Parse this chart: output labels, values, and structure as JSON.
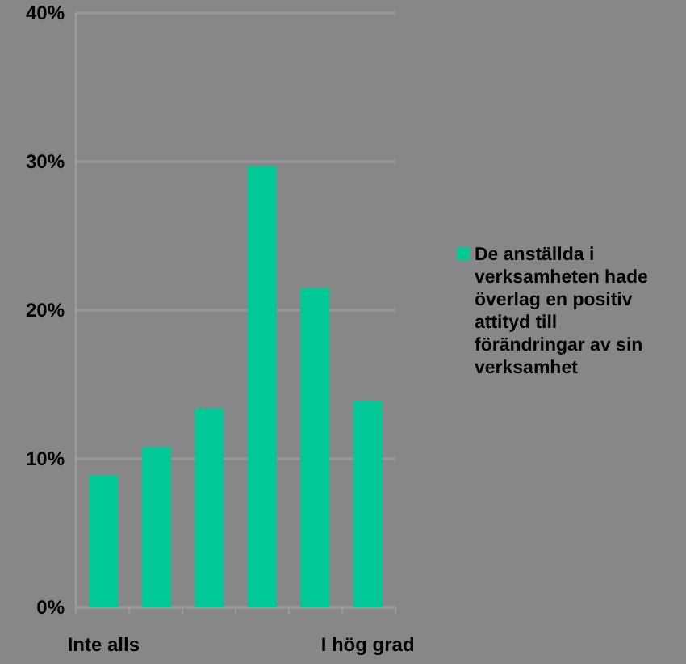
{
  "chart_data": {
    "type": "bar",
    "categories": [
      "Inte alls",
      null,
      null,
      null,
      null,
      "I hög grad"
    ],
    "series": [
      {
        "name": "De anställda i verksamheten hade överlag en positiv attityd till förändringar av sin verksamhet",
        "color": "#00c896",
        "values": [
          8.9,
          10.8,
          13.4,
          29.7,
          21.5,
          13.9
        ]
      }
    ],
    "ylim": [
      0,
      40
    ],
    "yticks": [
      {
        "value": 0,
        "label": "0%"
      },
      {
        "value": 10,
        "label": "10%"
      },
      {
        "value": 20,
        "label": "20%"
      },
      {
        "value": 30,
        "label": "30%"
      },
      {
        "value": 40,
        "label": "40%"
      }
    ],
    "grid": "y",
    "legend": "right"
  }
}
